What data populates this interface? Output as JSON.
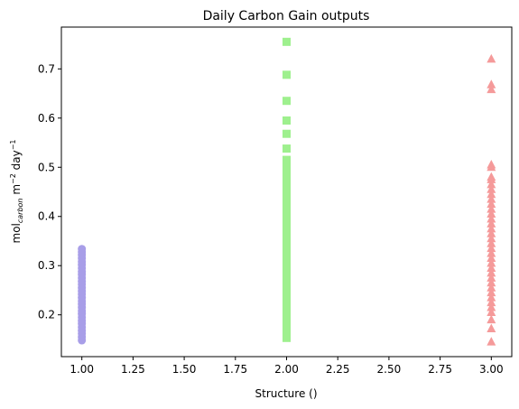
{
  "chart_data": {
    "type": "scatter",
    "title": "Daily Carbon Gain outputs",
    "xlabel": "Structure ()",
    "ylabel_main": "mol",
    "ylabel_sub": "carbon",
    "ylabel_rest": " m",
    "ylabel_sup1": "−2",
    "ylabel_mid": " day",
    "ylabel_sup2": "−1",
    "xlim": [
      0.9,
      3.1
    ],
    "ylim": [
      0.115,
      0.785
    ],
    "xticks": [
      1.0,
      1.25,
      1.5,
      1.75,
      2.0,
      2.25,
      2.5,
      2.75,
      3.0
    ],
    "xtick_labels": [
      "1.00",
      "1.25",
      "1.50",
      "1.75",
      "2.00",
      "2.25",
      "2.50",
      "2.75",
      "3.00"
    ],
    "yticks": [
      0.2,
      0.3,
      0.4,
      0.5,
      0.6,
      0.7
    ],
    "ytick_labels": [
      "0.2",
      "0.3",
      "0.4",
      "0.5",
      "0.6",
      "0.7"
    ],
    "grid": false,
    "series": [
      {
        "marker": "circle",
        "color": "#a89ee8",
        "x": 1.0,
        "y": [
          0.148,
          0.155,
          0.162,
          0.168,
          0.175,
          0.182,
          0.188,
          0.195,
          0.202,
          0.208,
          0.215,
          0.222,
          0.228,
          0.235,
          0.242,
          0.248,
          0.255,
          0.262,
          0.268,
          0.275,
          0.282,
          0.288,
          0.295,
          0.302,
          0.308,
          0.315,
          0.322,
          0.328,
          0.334
        ]
      },
      {
        "marker": "square",
        "color": "#9ef08e",
        "x": 2.0,
        "y": [
          0.153,
          0.168,
          0.18,
          0.19,
          0.2,
          0.21,
          0.22,
          0.23,
          0.24,
          0.25,
          0.26,
          0.27,
          0.28,
          0.29,
          0.3,
          0.31,
          0.32,
          0.33,
          0.34,
          0.35,
          0.36,
          0.37,
          0.38,
          0.39,
          0.4,
          0.41,
          0.42,
          0.43,
          0.44,
          0.45,
          0.46,
          0.47,
          0.48,
          0.49,
          0.5,
          0.515,
          0.538,
          0.568,
          0.595,
          0.635,
          0.688,
          0.755
        ]
      },
      {
        "marker": "triangle",
        "color": "#f59a9a",
        "x": 3.0,
        "y": [
          0.145,
          0.172,
          0.19,
          0.205,
          0.215,
          0.225,
          0.235,
          0.245,
          0.255,
          0.265,
          0.275,
          0.285,
          0.295,
          0.305,
          0.315,
          0.325,
          0.335,
          0.345,
          0.355,
          0.365,
          0.375,
          0.385,
          0.395,
          0.405,
          0.415,
          0.425,
          0.435,
          0.445,
          0.455,
          0.465,
          0.475,
          0.48,
          0.5,
          0.505,
          0.658,
          0.668,
          0.72
        ]
      }
    ]
  }
}
